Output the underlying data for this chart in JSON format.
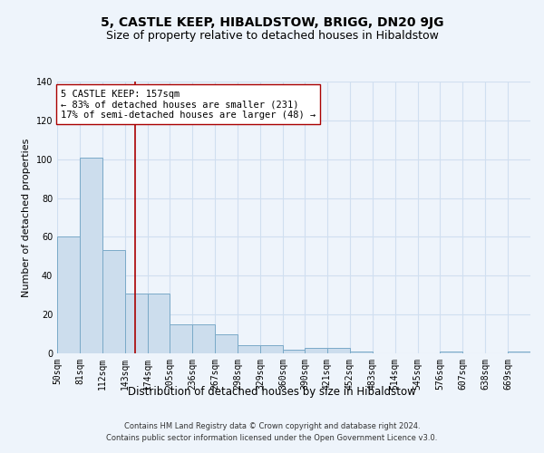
{
  "title": "5, CASTLE KEEP, HIBALDSTOW, BRIGG, DN20 9JG",
  "subtitle": "Size of property relative to detached houses in Hibaldstow",
  "xlabel": "Distribution of detached houses by size in Hibaldstow",
  "ylabel": "Number of detached properties",
  "bin_labels": [
    "50sqm",
    "81sqm",
    "112sqm",
    "143sqm",
    "174sqm",
    "205sqm",
    "236sqm",
    "267sqm",
    "298sqm",
    "329sqm",
    "360sqm",
    "390sqm",
    "421sqm",
    "452sqm",
    "483sqm",
    "514sqm",
    "545sqm",
    "576sqm",
    "607sqm",
    "638sqm",
    "669sqm"
  ],
  "bin_edges": [
    50,
    81,
    112,
    143,
    174,
    205,
    236,
    267,
    298,
    329,
    360,
    390,
    421,
    452,
    483,
    514,
    545,
    576,
    607,
    638,
    669
  ],
  "bar_heights": [
    60,
    101,
    53,
    31,
    31,
    15,
    15,
    10,
    4,
    4,
    2,
    3,
    3,
    1,
    0,
    0,
    0,
    1,
    0,
    0,
    1
  ],
  "bar_color": "#ccdded",
  "bar_edge_color": "#7aaac8",
  "grid_color": "#d0dff0",
  "background_color": "#eef4fb",
  "vline_x": 157,
  "vline_color": "#aa0000",
  "annotation_text": "5 CASTLE KEEP: 157sqm\n← 83% of detached houses are smaller (231)\n17% of semi-detached houses are larger (48) →",
  "annotation_box_color": "white",
  "annotation_box_edge_color": "#aa0000",
  "ylim": [
    0,
    140
  ],
  "yticks": [
    0,
    20,
    40,
    60,
    80,
    100,
    120,
    140
  ],
  "footnote": "Contains HM Land Registry data © Crown copyright and database right 2024.\nContains public sector information licensed under the Open Government Licence v3.0.",
  "title_fontsize": 10,
  "subtitle_fontsize": 9,
  "xlabel_fontsize": 8.5,
  "ylabel_fontsize": 8,
  "tick_fontsize": 7,
  "annotation_fontsize": 7.5,
  "footnote_fontsize": 6
}
